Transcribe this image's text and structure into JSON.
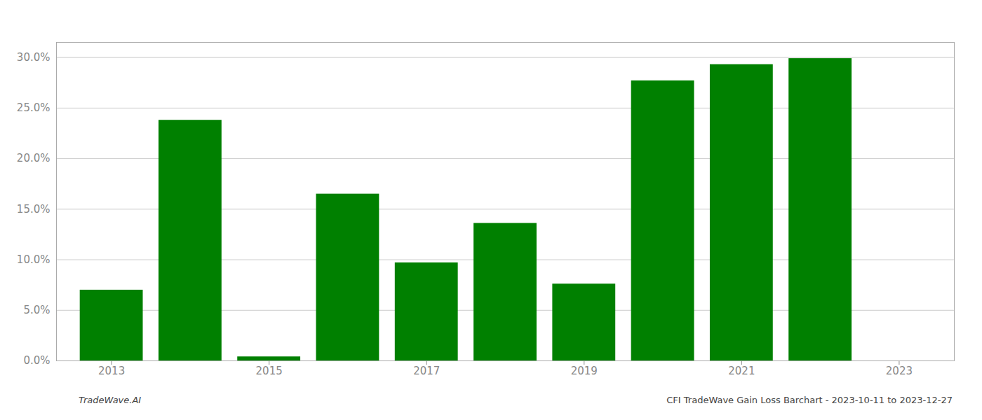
{
  "chart_data": {
    "type": "bar",
    "x": [
      2013,
      2014,
      2015,
      2016,
      2017,
      2018,
      2019,
      2020,
      2021,
      2022
    ],
    "values": [
      0.07,
      0.238,
      0.004,
      0.165,
      0.097,
      0.136,
      0.076,
      0.277,
      0.293,
      0.299
    ],
    "color": "#008000",
    "xlim": [
      2012.3,
      2023.7
    ],
    "xticks": [
      2013,
      2015,
      2017,
      2019,
      2021,
      2023
    ],
    "ylim": [
      0,
      0.315
    ],
    "yticks": [
      {
        "value": 0.0,
        "label": "0.0%"
      },
      {
        "value": 0.05,
        "label": "5.0%"
      },
      {
        "value": 0.1,
        "label": "10.0%"
      },
      {
        "value": 0.15,
        "label": "15.0%"
      },
      {
        "value": 0.2,
        "label": "20.0%"
      },
      {
        "value": 0.25,
        "label": "25.0%"
      },
      {
        "value": 0.3,
        "label": "30.0%"
      }
    ],
    "grid": true,
    "annotations": [
      "TradeWave.AI",
      "CFI TradeWave Gain Loss Barchart - 2023-10-11 to 2023-12-27"
    ]
  }
}
